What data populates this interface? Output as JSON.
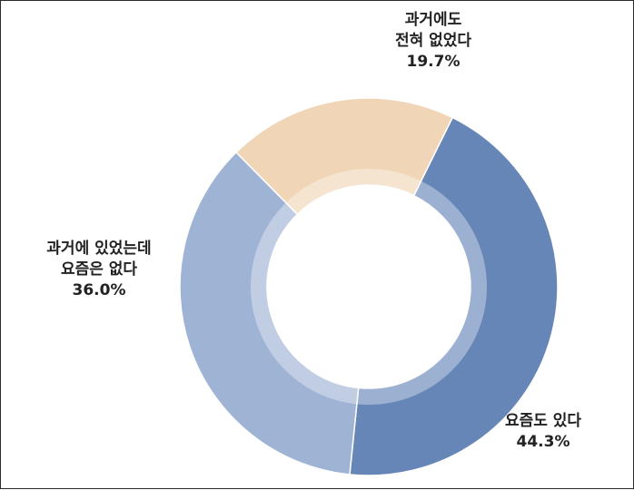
{
  "chart_data": {
    "type": "pie",
    "title": "",
    "slices": [
      {
        "lines": [
          "요즘도 있다"
        ],
        "value_label": "44.3%",
        "value": 44.3,
        "color": "#6786b8"
      },
      {
        "lines": [
          "과거에 있었는데",
          "요즘은 없다"
        ],
        "value_label": "36.0%",
        "value": 36.0,
        "color": "#9fb3d5"
      },
      {
        "lines": [
          "과거에도",
          "전혀 없었다"
        ],
        "value_label": "19.7%",
        "value": 19.7,
        "color": "#f0d6b6"
      }
    ],
    "start_slice": "과거에도 전혀 없었다",
    "donut": true,
    "legend": "none"
  }
}
